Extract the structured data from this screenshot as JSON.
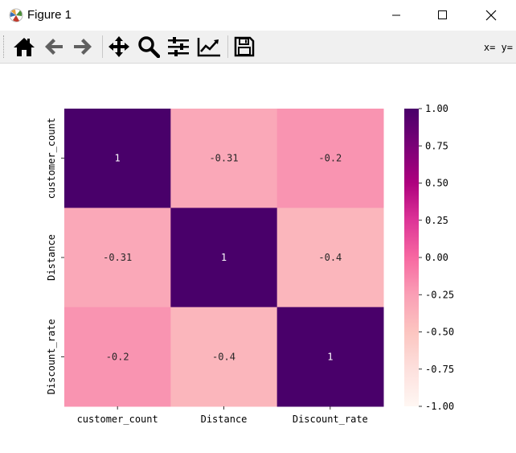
{
  "window": {
    "title": "Figure 1"
  },
  "toolbar": {
    "buttons": [
      {
        "name": "home-button",
        "icon": "home-icon"
      },
      {
        "name": "back-button",
        "icon": "arrow-left-icon"
      },
      {
        "name": "forward-button",
        "icon": "arrow-right-icon"
      },
      {
        "name": "pan-button",
        "icon": "move-icon"
      },
      {
        "name": "zoom-button",
        "icon": "zoom-icon"
      },
      {
        "name": "configure-subplots-button",
        "icon": "sliders-icon"
      },
      {
        "name": "edit-axis-button",
        "icon": "chart-line-icon"
      },
      {
        "name": "save-button",
        "icon": "floppy-disk-icon"
      }
    ],
    "coords": "x= y="
  },
  "chart_data": {
    "type": "heatmap",
    "rows": [
      "customer_count",
      "Distance",
      "Discount_rate"
    ],
    "columns": [
      "customer_count",
      "Distance",
      "Discount_rate"
    ],
    "values": [
      [
        1,
        -0.31,
        -0.2
      ],
      [
        -0.31,
        1,
        -0.4
      ],
      [
        -0.2,
        -0.4,
        1
      ]
    ],
    "annotations": [
      [
        "1",
        "-0.31",
        "-0.2"
      ],
      [
        "-0.31",
        "1",
        "-0.4"
      ],
      [
        "-0.2",
        "-0.4",
        "1"
      ]
    ],
    "colorbar": {
      "range": [
        -1.0,
        1.0
      ],
      "ticks": [
        "1.00",
        "0.75",
        "0.50",
        "0.25",
        "0.00",
        "-0.25",
        "-0.50",
        "-0.75",
        "-1.00"
      ],
      "colormap": "RdPu"
    }
  }
}
